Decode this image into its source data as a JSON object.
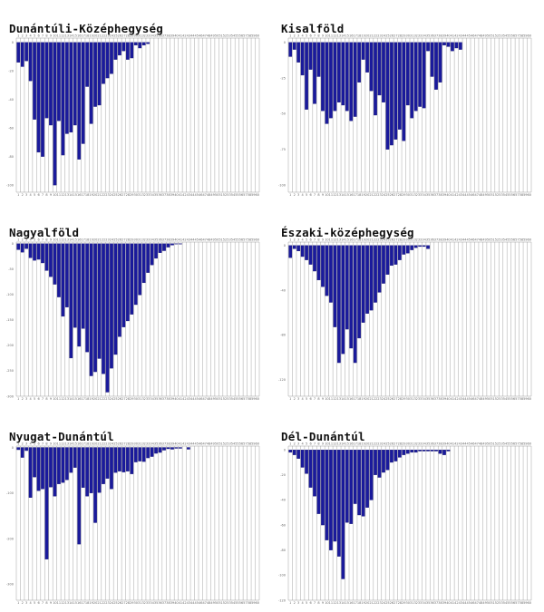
{
  "colors": {
    "bar": "#1a1a9c",
    "bar_stroke": "#10106a",
    "grid": "#b4b4b4",
    "axis": "#999999"
  },
  "chart_data": [
    {
      "type": "bar",
      "title": "Dunántúli-Középhegység",
      "categories": [
        "1",
        "2",
        "3",
        "4",
        "5",
        "6",
        "7",
        "8",
        "9",
        "10",
        "11",
        "12",
        "13",
        "14",
        "15",
        "16",
        "17",
        "18",
        "19",
        "20",
        "21",
        "22",
        "23",
        "24",
        "25",
        "26",
        "27",
        "28",
        "29",
        "30",
        "31",
        "32",
        "33",
        "34",
        "35",
        "36",
        "37",
        "38",
        "39",
        "40",
        "41",
        "42",
        "43",
        "44",
        "45",
        "46",
        "47",
        "48",
        "49",
        "50",
        "51",
        "52",
        "53",
        "54",
        "55",
        "56",
        "57",
        "58",
        "59",
        "60"
      ],
      "values": [
        -14,
        -17,
        -13,
        -27,
        -54,
        -77,
        -80,
        -53,
        -58,
        -100,
        -55,
        -79,
        -64,
        -63,
        -58,
        -82,
        -71,
        -31,
        -57,
        -45,
        -44,
        -29,
        -25,
        -22,
        -12,
        -9,
        -6,
        -12,
        -11,
        -2,
        -4,
        -2,
        -1,
        0,
        0,
        0,
        0,
        0,
        0,
        0,
        0,
        0,
        0,
        0,
        0,
        0,
        0,
        0,
        0,
        0,
        0,
        0,
        0,
        0,
        0,
        0,
        0,
        0,
        0,
        0
      ],
      "ylim": [
        -105,
        3
      ],
      "yticks": [
        0,
        -20,
        -40,
        -60,
        -80,
        -100
      ]
    },
    {
      "type": "bar",
      "title": "Kisalföld",
      "categories": [
        "1",
        "2",
        "3",
        "4",
        "5",
        "6",
        "7",
        "8",
        "9",
        "10",
        "11",
        "12",
        "13",
        "14",
        "15",
        "16",
        "17",
        "18",
        "19",
        "20",
        "21",
        "22",
        "23",
        "24",
        "25",
        "26",
        "27",
        "28",
        "29",
        "30",
        "31",
        "32",
        "33",
        "34",
        "35",
        "36",
        "37",
        "38",
        "39",
        "40",
        "41",
        "42",
        "43",
        "44",
        "45",
        "46",
        "47",
        "48",
        "49",
        "50",
        "51",
        "52",
        "53",
        "54",
        "55",
        "56",
        "57",
        "58",
        "59",
        "60"
      ],
      "values": [
        -10,
        -5,
        -14,
        -23,
        -47,
        -19,
        -43,
        -24,
        -48,
        -57,
        -53,
        -48,
        -42,
        -44,
        -48,
        -55,
        -52,
        -28,
        -12,
        -21,
        -34,
        -51,
        -37,
        -42,
        -75,
        -72,
        -68,
        -61,
        -69,
        -44,
        -53,
        -48,
        -45,
        -46,
        -6,
        -24,
        -33,
        -28,
        -2,
        -3,
        -6,
        -4,
        -5,
        0,
        0,
        0,
        0,
        0,
        0,
        0,
        0,
        0,
        0,
        0,
        0,
        0,
        0,
        0,
        0,
        0
      ],
      "ylim": [
        -105,
        3
      ],
      "yticks": [
        0,
        -25,
        -50,
        -75,
        -100
      ]
    },
    {
      "type": "bar",
      "title": "Nagyalföld",
      "categories": [
        "1",
        "2",
        "3",
        "4",
        "5",
        "6",
        "7",
        "8",
        "9",
        "10",
        "11",
        "12",
        "13",
        "14",
        "15",
        "16",
        "17",
        "18",
        "19",
        "20",
        "21",
        "22",
        "23",
        "24",
        "25",
        "26",
        "27",
        "28",
        "29",
        "30",
        "31",
        "32",
        "33",
        "34",
        "35",
        "36",
        "37",
        "38",
        "39",
        "40",
        "41",
        "42",
        "43",
        "44",
        "45",
        "46",
        "47",
        "48",
        "49",
        "50",
        "51",
        "52",
        "53",
        "54",
        "55",
        "56",
        "57",
        "58",
        "59",
        "60"
      ],
      "values": [
        -12,
        -17,
        -10,
        -28,
        -33,
        -31,
        -38,
        -53,
        -65,
        -80,
        -105,
        -143,
        -125,
        -225,
        -165,
        -202,
        -167,
        -213,
        -260,
        -252,
        -226,
        -256,
        -292,
        -245,
        -218,
        -183,
        -164,
        -152,
        -139,
        -120,
        -101,
        -77,
        -57,
        -42,
        -29,
        -18,
        -14,
        -7,
        -3,
        -1,
        -1,
        0,
        0,
        0,
        0,
        0,
        0,
        0,
        0,
        0,
        0,
        0,
        0,
        0,
        0,
        0,
        0,
        0,
        0,
        0
      ],
      "ylim": [
        -300,
        3
      ],
      "yticks": [
        0,
        -50,
        -100,
        -150,
        -200,
        -250,
        -300
      ]
    },
    {
      "type": "bar",
      "title": "Északi-középhegység",
      "categories": [
        "1",
        "2",
        "3",
        "4",
        "5",
        "6",
        "7",
        "8",
        "9",
        "10",
        "11",
        "12",
        "13",
        "14",
        "15",
        "16",
        "17",
        "18",
        "19",
        "20",
        "21",
        "22",
        "23",
        "24",
        "25",
        "26",
        "27",
        "28",
        "29",
        "30",
        "31",
        "32",
        "33",
        "34",
        "35",
        "36",
        "37",
        "38",
        "39",
        "40",
        "41",
        "42",
        "43",
        "44",
        "45",
        "46",
        "47",
        "48",
        "49",
        "50",
        "51",
        "52",
        "53",
        "54",
        "55",
        "56",
        "57",
        "58",
        "59",
        "60"
      ],
      "values": [
        -11,
        -3,
        -5,
        -10,
        -13,
        -17,
        -23,
        -31,
        -37,
        -45,
        -51,
        -73,
        -105,
        -97,
        -75,
        -92,
        -105,
        -83,
        -69,
        -61,
        -58,
        -51,
        -42,
        -34,
        -26,
        -18,
        -17,
        -13,
        -8,
        -7,
        -4,
        -2,
        -1,
        -1,
        -3,
        0,
        0,
        0,
        0,
        0,
        0,
        0,
        0,
        0,
        0,
        0,
        0,
        0,
        0,
        0,
        0,
        0,
        0,
        0,
        0,
        0,
        0,
        0,
        0,
        0
      ],
      "ylim": [
        -135,
        3
      ],
      "yticks": [
        0,
        -40,
        -80,
        -120
      ]
    },
    {
      "type": "bar",
      "title": "Nyugat-Dunántúl",
      "categories": [
        "1",
        "2",
        "3",
        "4",
        "5",
        "6",
        "7",
        "8",
        "9",
        "10",
        "11",
        "12",
        "13",
        "14",
        "15",
        "16",
        "17",
        "18",
        "19",
        "20",
        "21",
        "22",
        "23",
        "24",
        "25",
        "26",
        "27",
        "28",
        "29",
        "30",
        "31",
        "32",
        "33",
        "34",
        "35",
        "36",
        "37",
        "38",
        "39",
        "40",
        "41",
        "42",
        "43",
        "44",
        "45",
        "46",
        "47",
        "48",
        "49",
        "50",
        "51",
        "52",
        "53",
        "54",
        "55",
        "56",
        "57",
        "58",
        "59",
        "60"
      ],
      "values": [
        -5,
        -22,
        -7,
        -110,
        -65,
        -95,
        -91,
        -245,
        -87,
        -107,
        -80,
        -77,
        -71,
        -55,
        -44,
        -212,
        -88,
        -107,
        -100,
        -165,
        -99,
        -80,
        -68,
        -91,
        -55,
        -52,
        -54,
        -52,
        -58,
        -32,
        -30,
        -31,
        -23,
        -20,
        -13,
        -11,
        -6,
        -3,
        -4,
        -2,
        -2,
        0,
        -4,
        0,
        0,
        0,
        0,
        0,
        0,
        0,
        0,
        0,
        0,
        0,
        0,
        0,
        0,
        0,
        0,
        0
      ],
      "ylim": [
        -335,
        3
      ],
      "yticks": [
        0,
        -100,
        -200,
        -300
      ]
    },
    {
      "type": "bar",
      "title": "Dél-Dunántúl",
      "categories": [
        "1",
        "2",
        "3",
        "4",
        "5",
        "6",
        "7",
        "8",
        "9",
        "10",
        "11",
        "12",
        "13",
        "14",
        "15",
        "16",
        "17",
        "18",
        "19",
        "20",
        "21",
        "22",
        "23",
        "24",
        "25",
        "26",
        "27",
        "28",
        "29",
        "30",
        "31",
        "32",
        "33",
        "34",
        "35",
        "36",
        "37",
        "38",
        "39",
        "40",
        "41",
        "42",
        "43",
        "44",
        "45",
        "46",
        "47",
        "48",
        "49",
        "50",
        "51",
        "52",
        "53",
        "54",
        "55",
        "56",
        "57",
        "58",
        "59",
        "60"
      ],
      "values": [
        -2,
        -4,
        -7,
        -14,
        -19,
        -30,
        -37,
        -51,
        -60,
        -72,
        -80,
        -73,
        -85,
        -103,
        -58,
        -59,
        -43,
        -52,
        -53,
        -46,
        -40,
        -20,
        -22,
        -18,
        -16,
        -10,
        -9,
        -6,
        -4,
        -3,
        -2,
        -2,
        -1,
        -1,
        -1,
        -1,
        -1,
        -3,
        -4,
        -1,
        0,
        0,
        0,
        0,
        0,
        0,
        0,
        0,
        0,
        0,
        0,
        0,
        0,
        0,
        0,
        0,
        0,
        0,
        0,
        0
      ],
      "ylim": [
        -120,
        3
      ],
      "yticks": [
        0,
        -20,
        -40,
        -60,
        -80,
        -100,
        -120
      ]
    }
  ]
}
